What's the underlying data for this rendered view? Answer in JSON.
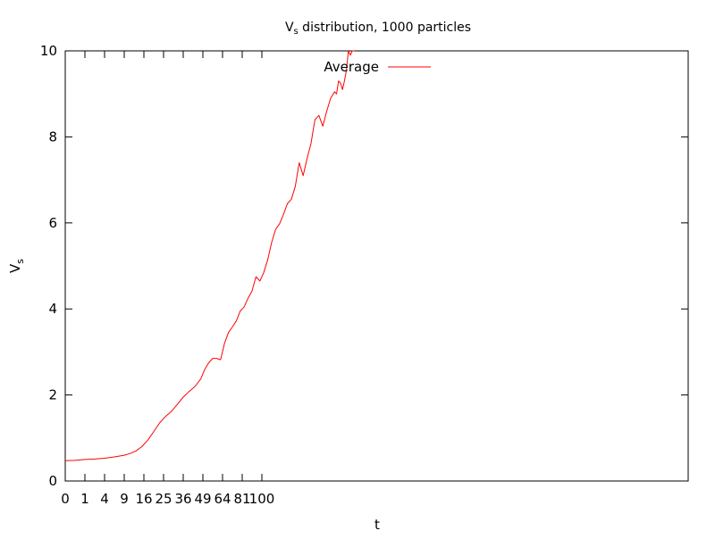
{
  "chart_data": {
    "type": "line",
    "title": {
      "main": "V",
      "sub": "s",
      "rest": " distribution, 1000 particles"
    },
    "xlabel": "t",
    "ylabel": {
      "main": "V",
      "sub": "s"
    },
    "xlim": [
      0,
      32
    ],
    "ylim": [
      0,
      10
    ],
    "x_ticks": [
      0,
      1,
      2,
      3,
      4,
      5,
      6,
      7,
      8,
      9,
      10
    ],
    "x_tick_labels": [
      "0",
      "1",
      "4",
      "9",
      "16",
      "25",
      "36",
      "49",
      "64",
      "81",
      "100"
    ],
    "y_ticks": [
      0,
      2,
      4,
      6,
      8,
      10
    ],
    "y_tick_labels": [
      "0",
      "2",
      "4",
      "6",
      "8",
      "10"
    ],
    "grid": false,
    "legend_position": "top-center",
    "series": [
      {
        "name": "Average",
        "color": "#ff0000",
        "x": [
          0,
          0.5,
          1,
          1.5,
          2,
          2.5,
          3,
          3.3,
          3.6,
          3.9,
          4.2,
          4.5,
          4.8,
          5.1,
          5.4,
          5.7,
          6.0,
          6.3,
          6.6,
          6.9,
          7.1,
          7.3,
          7.5,
          7.7,
          7.9,
          8.1,
          8.3,
          8.5,
          8.7,
          8.9,
          9.1,
          9.3,
          9.5,
          9.7,
          9.9,
          10.1,
          10.3,
          10.5,
          10.7,
          10.9,
          11.1,
          11.3,
          11.5,
          11.7,
          11.9,
          12.1,
          12.3,
          12.5,
          12.7,
          12.9,
          13.1,
          13.3,
          13.5,
          13.7,
          13.8,
          13.9,
          14.0,
          14.1,
          14.2,
          14.3,
          14.4,
          14.5,
          14.6,
          14.7
        ],
        "y": [
          0.47,
          0.48,
          0.5,
          0.51,
          0.53,
          0.56,
          0.6,
          0.64,
          0.7,
          0.8,
          0.95,
          1.15,
          1.35,
          1.5,
          1.62,
          1.78,
          1.95,
          2.08,
          2.2,
          2.38,
          2.6,
          2.75,
          2.85,
          2.85,
          2.82,
          3.2,
          3.45,
          3.58,
          3.72,
          3.95,
          4.05,
          4.25,
          4.42,
          4.75,
          4.65,
          4.85,
          5.15,
          5.55,
          5.85,
          5.98,
          6.2,
          6.45,
          6.55,
          6.85,
          7.4,
          7.1,
          7.5,
          7.85,
          8.4,
          8.5,
          8.25,
          8.6,
          8.9,
          9.05,
          9.0,
          9.3,
          9.25,
          9.1,
          9.3,
          9.55,
          10.0,
          9.9,
          10.0,
          10.2
        ]
      }
    ]
  }
}
